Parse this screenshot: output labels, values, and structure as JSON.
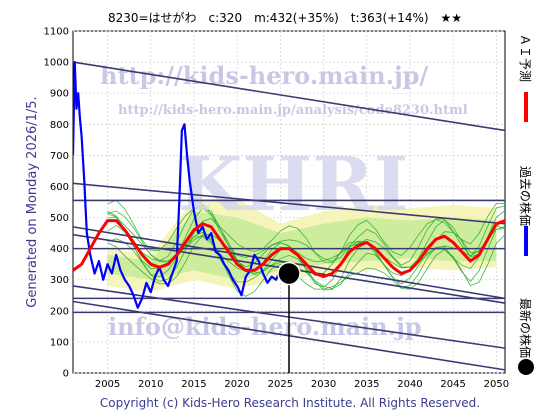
{
  "chart_data": {
    "type": "line",
    "title": "8230=はせがわ　c:320　m:432(+35%)　t:363(+14%)　★★",
    "ylim": [
      0,
      1100
    ],
    "xlim": [
      2001,
      2051
    ],
    "yticks": [
      0,
      100,
      200,
      300,
      400,
      500,
      600,
      700,
      800,
      900,
      1000,
      1100
    ],
    "xticks": [
      2005,
      2010,
      2015,
      2020,
      2025,
      2030,
      2035,
      2040,
      2045,
      2050
    ],
    "grid": true,
    "legend_position": "right-vertical",
    "series": [
      {
        "name": "過去の株価",
        "color": "#0000ff",
        "x": [
          2001.0,
          2001.2,
          2001.4,
          2001.6,
          2001.8,
          2002.0,
          2002.3,
          2002.6,
          2003.0,
          2003.5,
          2004.0,
          2004.5,
          2005.0,
          2005.5,
          2006.0,
          2006.5,
          2007.0,
          2007.5,
          2008.0,
          2008.5,
          2009.0,
          2009.5,
          2010.0,
          2010.5,
          2011.0,
          2011.5,
          2012.0,
          2012.5,
          2013.0,
          2013.3,
          2013.6,
          2013.9,
          2014.2,
          2014.5,
          2015.0,
          2015.5,
          2016.0,
          2016.5,
          2017.0,
          2017.5,
          2018.0,
          2018.5,
          2019.0,
          2019.5,
          2020.0,
          2020.5,
          2021.0,
          2021.5,
          2022.0,
          2022.5,
          2023.0,
          2023.5,
          2024.0,
          2024.5,
          2025.0,
          2025.5,
          2026.0
        ],
        "values": [
          700,
          1000,
          850,
          900,
          820,
          760,
          620,
          450,
          380,
          320,
          360,
          300,
          350,
          320,
          380,
          330,
          300,
          280,
          250,
          210,
          240,
          290,
          260,
          310,
          340,
          300,
          280,
          320,
          360,
          550,
          780,
          800,
          700,
          620,
          520,
          450,
          470,
          430,
          450,
          390,
          380,
          350,
          330,
          300,
          280,
          250,
          310,
          330,
          380,
          360,
          320,
          290,
          310,
          300,
          330,
          310,
          320
        ]
      },
      {
        "name": "ＡＩ予測",
        "color": "#ff0000",
        "x": [
          2001,
          2002,
          2003,
          2004,
          2005,
          2006,
          2007,
          2008,
          2009,
          2010,
          2011,
          2012,
          2013,
          2014,
          2015,
          2016,
          2017,
          2018,
          2019,
          2020,
          2021,
          2022,
          2023,
          2024,
          2025,
          2026,
          2027,
          2028,
          2029,
          2030,
          2031,
          2032,
          2033,
          2034,
          2035,
          2036,
          2037,
          2038,
          2039,
          2040,
          2041,
          2042,
          2043,
          2044,
          2045,
          2046,
          2047,
          2048,
          2049,
          2050,
          2051
        ],
        "values": [
          330,
          350,
          400,
          450,
          490,
          490,
          460,
          420,
          380,
          350,
          340,
          350,
          380,
          420,
          460,
          480,
          470,
          430,
          390,
          350,
          330,
          330,
          350,
          380,
          400,
          400,
          380,
          350,
          320,
          310,
          320,
          350,
          390,
          410,
          420,
          400,
          370,
          340,
          320,
          330,
          360,
          400,
          430,
          440,
          420,
          390,
          360,
          380,
          430,
          480,
          490
        ]
      }
    ],
    "current_price": {
      "label": "最新の株価",
      "x": 2026.0,
      "y": 320
    },
    "trend_lines": [
      {
        "x": [
          2001,
          2051
        ],
        "y": [
          1000,
          780
        ]
      },
      {
        "x": [
          2001,
          2051
        ],
        "y": [
          610,
          480
        ]
      },
      {
        "x": [
          2001,
          2051
        ],
        "y": [
          555,
          555
        ]
      },
      {
        "x": [
          2001,
          2051
        ],
        "y": [
          470,
          240
        ]
      },
      {
        "x": [
          2001,
          2051
        ],
        "y": [
          445,
          225
        ]
      },
      {
        "x": [
          2001,
          2051
        ],
        "y": [
          400,
          400
        ]
      },
      {
        "x": [
          2001,
          2051
        ],
        "y": [
          280,
          80
        ]
      },
      {
        "x": [
          2001,
          2051
        ],
        "y": [
          240,
          240
        ]
      },
      {
        "x": [
          2001,
          2051
        ],
        "y": [
          195,
          195
        ]
      },
      {
        "x": [
          2001,
          2051
        ],
        "y": [
          230,
          10
        ]
      }
    ],
    "bands": [
      {
        "color": "#f3f3b4",
        "x": [
          2005,
          2010,
          2015,
          2020,
          2025,
          2030,
          2035,
          2040,
          2045,
          2050
        ],
        "lower": [
          280,
          260,
          300,
          270,
          300,
          320,
          330,
          340,
          330,
          340
        ],
        "upper": [
          400,
          380,
          560,
          560,
          480,
          520,
          540,
          530,
          540,
          530
        ]
      },
      {
        "color": "#c9eb9b",
        "x": [
          2005,
          2010,
          2015,
          2020,
          2025,
          2030,
          2035,
          2040,
          2045,
          2050
        ],
        "lower": [
          320,
          300,
          330,
          300,
          330,
          350,
          360,
          370,
          360,
          360
        ],
        "upper": [
          380,
          360,
          520,
          500,
          450,
          480,
          500,
          490,
          500,
          490
        ]
      }
    ]
  },
  "side_labels": {
    "generated": "Generated on Monday 2026/1/5.",
    "legend_ai": "ＡＩ予測",
    "legend_past": "過去の株価",
    "legend_latest": "最新の株価"
  },
  "watermarks": {
    "top_url": "http://kids-hero.main.jp/",
    "sub_url": "http://kids-hero.main.jp/analysis/code8230.html",
    "big_text": "KHRI",
    "email": "info@kids-hero.main.jp"
  },
  "footer": {
    "copyright": "Copyright (c) Kids-Hero Research Institute. All Rights Reserved."
  }
}
